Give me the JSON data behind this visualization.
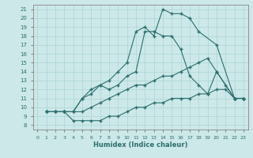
{
  "xlabel": "Humidex (Indice chaleur)",
  "bg_color": "#cce8e8",
  "line_color": "#2d6e6e",
  "grid_color": "#b0d8d8",
  "xlim": [
    -0.5,
    23.5
  ],
  "ylim": [
    7.5,
    21.5
  ],
  "yticks": [
    8,
    9,
    10,
    11,
    12,
    13,
    14,
    15,
    16,
    17,
    18,
    19,
    20,
    21
  ],
  "xticks": [
    0,
    1,
    2,
    3,
    4,
    5,
    6,
    7,
    8,
    9,
    10,
    11,
    12,
    13,
    14,
    15,
    16,
    17,
    18,
    19,
    20,
    21,
    22,
    23
  ],
  "series": [
    {
      "x": [
        1,
        2,
        3,
        4,
        5,
        6,
        7,
        8,
        9,
        10,
        11,
        12,
        13,
        14,
        15,
        16,
        17,
        18,
        20,
        22,
        23
      ],
      "y": [
        9.5,
        9.5,
        9.5,
        9.5,
        11.0,
        12.0,
        12.5,
        13.0,
        14.0,
        15.0,
        18.5,
        19.0,
        18.0,
        21.0,
        20.5,
        20.5,
        20.0,
        18.5,
        17.0,
        11.0,
        11.0
      ]
    },
    {
      "x": [
        1,
        2,
        3,
        4,
        5,
        6,
        7,
        8,
        9,
        10,
        11,
        12,
        13,
        14,
        15,
        16,
        17,
        18,
        19,
        20,
        22,
        23
      ],
      "y": [
        9.5,
        9.5,
        9.5,
        9.5,
        11.0,
        11.5,
        12.5,
        12.0,
        12.5,
        13.5,
        14.0,
        18.5,
        18.5,
        18.0,
        18.0,
        16.5,
        13.5,
        12.5,
        11.5,
        14.0,
        11.0,
        11.0
      ]
    },
    {
      "x": [
        1,
        2,
        3,
        4,
        5,
        6,
        7,
        8,
        9,
        10,
        11,
        12,
        13,
        14,
        15,
        16,
        17,
        18,
        19,
        20,
        21,
        22,
        23
      ],
      "y": [
        9.5,
        9.5,
        9.5,
        9.5,
        9.5,
        10.0,
        10.5,
        11.0,
        11.5,
        12.0,
        12.5,
        12.5,
        13.0,
        13.5,
        13.5,
        14.0,
        14.5,
        15.0,
        15.5,
        14.0,
        12.5,
        11.0,
        11.0
      ]
    },
    {
      "x": [
        1,
        2,
        3,
        4,
        5,
        6,
        7,
        8,
        9,
        10,
        11,
        12,
        13,
        14,
        15,
        16,
        17,
        18,
        19,
        20,
        21,
        22,
        23
      ],
      "y": [
        9.5,
        9.5,
        9.5,
        8.5,
        8.5,
        8.5,
        8.5,
        9.0,
        9.0,
        9.5,
        10.0,
        10.0,
        10.5,
        10.5,
        11.0,
        11.0,
        11.0,
        11.5,
        11.5,
        12.0,
        12.0,
        11.0,
        11.0
      ]
    }
  ]
}
